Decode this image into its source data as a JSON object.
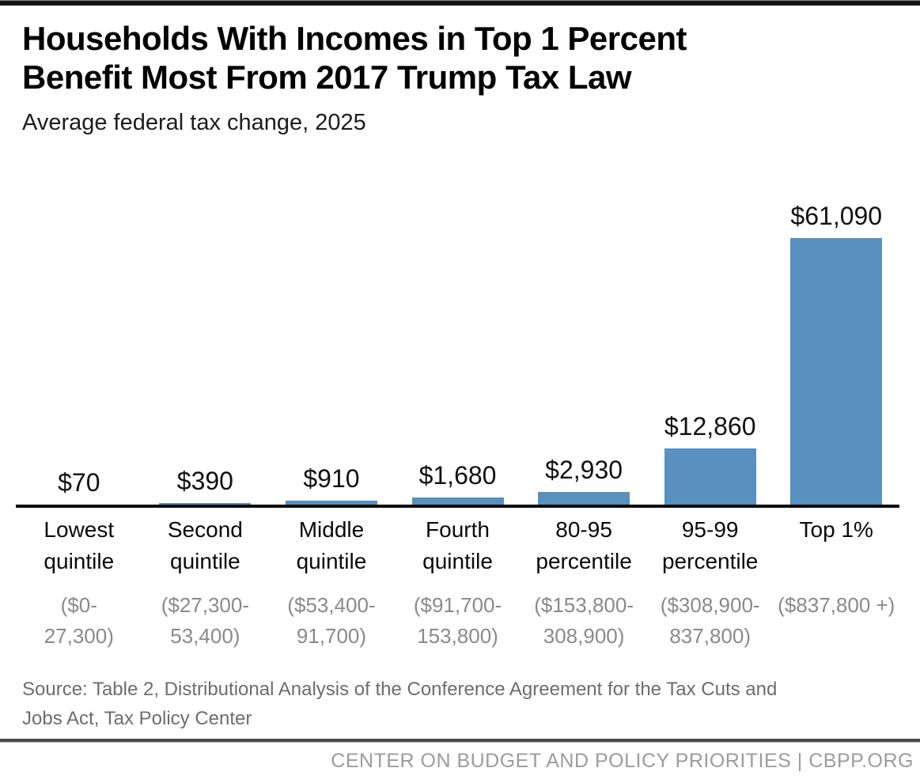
{
  "header": {
    "title_line1": "Households With Incomes in Top 1 Percent",
    "title_line2": "Benefit Most From 2017 Trump Tax Law",
    "subtitle": "Average federal tax change, 2025"
  },
  "chart_data": {
    "type": "bar",
    "title": "Households With Incomes in Top 1 Percent Benefit Most From 2017 Trump Tax Law",
    "subtitle": "Average federal tax change, 2025",
    "categories": [
      "Lowest quintile",
      "Second quintile",
      "Middle quintile",
      "Fourth quintile",
      "80-95 percentile",
      "95-99 percentile",
      "Top 1%"
    ],
    "income_ranges": [
      [
        "($0-",
        "27,300)"
      ],
      [
        "($27,300-",
        "53,400)"
      ],
      [
        "($53,400-",
        "91,700)"
      ],
      [
        "($91,700-",
        "153,800)"
      ],
      [
        "($153,800-",
        "308,900)"
      ],
      [
        "($308,900-",
        "837,800)"
      ],
      [
        "($837,800 +)"
      ]
    ],
    "values": [
      70,
      390,
      910,
      1680,
      2930,
      12860,
      61090
    ],
    "value_labels": [
      "$70",
      "$390",
      "$910",
      "$1,680",
      "$2,930",
      "$12,860",
      "$61,090"
    ],
    "bar_color": "#5890bf",
    "axis_color": "#0b0b0b",
    "ylim": [
      0,
      61090
    ],
    "grid": false,
    "legend": false,
    "xlabel": "",
    "ylabel": ""
  },
  "source": {
    "line1": "Source: Table 2, Distributional Analysis of the Conference Agreement for the Tax Cuts and",
    "line2": "Jobs Act, Tax Policy Center"
  },
  "footer": {
    "credit": "CENTER ON BUDGET AND POLICY PRIORITIES | CBPP.ORG"
  }
}
